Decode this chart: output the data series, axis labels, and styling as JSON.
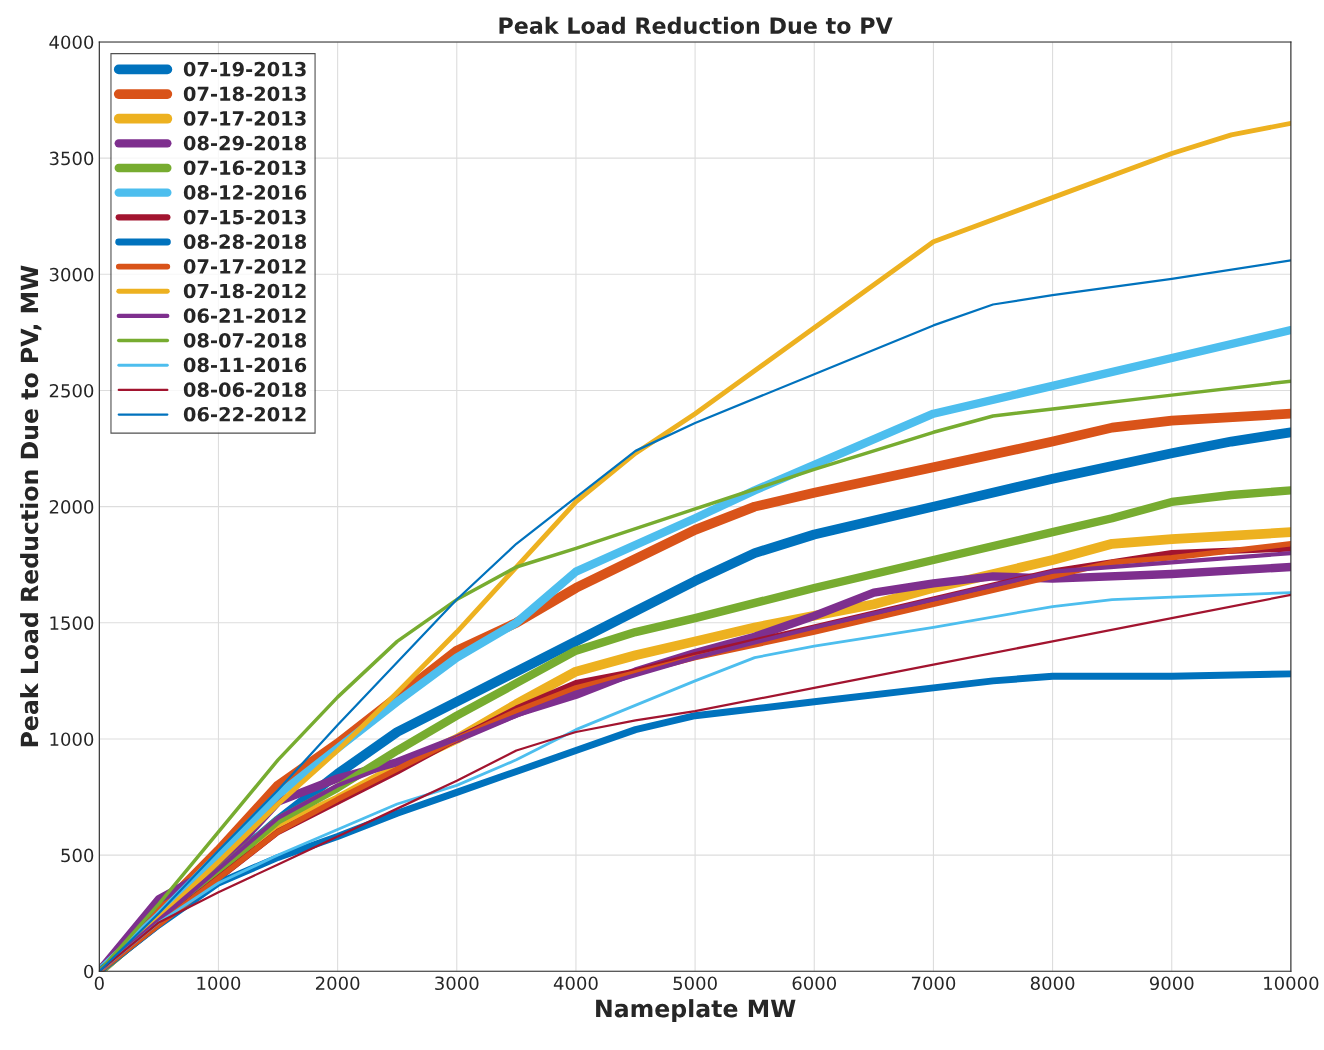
{
  "chart_data": {
    "type": "line",
    "title": "Peak Load Reduction Due to PV",
    "xlabel": "Nameplate MW",
    "ylabel": "Peak Load Reduction Due to PV, MW",
    "xlim": [
      0,
      10000
    ],
    "xticks": [
      0,
      1000,
      2000,
      3000,
      4000,
      5000,
      6000,
      7000,
      8000,
      9000,
      10000
    ],
    "ylim": [
      0,
      4000
    ],
    "yticks": [
      0,
      500,
      1000,
      1500,
      2000,
      2500,
      3000,
      3500,
      4000
    ],
    "grid": true,
    "legend": "top left",
    "marker": "none",
    "line_style": "solid",
    "series": [
      {
        "name": "07-19-2013",
        "color": "#0072bd",
        "x": [
          0,
          500,
          1000,
          1500,
          2000,
          2500,
          3000,
          3500,
          4000,
          4500,
          5000,
          5500,
          6000,
          7000,
          8000,
          9000,
          9500,
          10000
        ],
        "values": [
          0,
          220,
          430,
          650,
          850,
          1030,
          1160,
          1290,
          1420,
          1550,
          1680,
          1800,
          1880,
          2000,
          2120,
          2230,
          2280,
          2320
        ]
      },
      {
        "name": "07-18-2013",
        "color": "#d95319",
        "x": [
          0,
          500,
          1000,
          1500,
          2000,
          2500,
          3000,
          3500,
          4000,
          5000,
          5500,
          6000,
          7000,
          8000,
          8500,
          9000,
          10000
        ],
        "values": [
          0,
          260,
          520,
          800,
          980,
          1180,
          1380,
          1500,
          1650,
          1900,
          2000,
          2060,
          2170,
          2280,
          2340,
          2370,
          2400
        ]
      },
      {
        "name": "07-17-2013",
        "color": "#edb120",
        "x": [
          0,
          500,
          1000,
          1500,
          2000,
          2500,
          3000,
          3500,
          4000,
          4500,
          5000,
          5500,
          6000,
          6500,
          7000,
          8000,
          8500,
          9000,
          10000
        ],
        "values": [
          0,
          220,
          420,
          620,
          740,
          880,
          1000,
          1150,
          1290,
          1360,
          1420,
          1480,
          1530,
          1580,
          1650,
          1770,
          1840,
          1860,
          1890
        ]
      },
      {
        "name": "08-29-2018",
        "color": "#7e2f8e",
        "x": [
          0,
          500,
          1000,
          1500,
          2000,
          2500,
          3000,
          3500,
          4000,
          4500,
          5000,
          5500,
          6000,
          6500,
          7000,
          7500,
          8000,
          9000,
          10000
        ],
        "values": [
          0,
          310,
          450,
          730,
          830,
          900,
          1000,
          1110,
          1190,
          1290,
          1370,
          1440,
          1530,
          1630,
          1670,
          1700,
          1690,
          1710,
          1740
        ]
      },
      {
        "name": "07-16-2013",
        "color": "#77ac30",
        "x": [
          0,
          500,
          1000,
          1500,
          2000,
          2500,
          3000,
          3500,
          4000,
          4500,
          5000,
          6000,
          7000,
          8000,
          8500,
          9000,
          9500,
          10000
        ],
        "values": [
          0,
          210,
          430,
          650,
          790,
          950,
          1100,
          1240,
          1380,
          1460,
          1520,
          1650,
          1770,
          1890,
          1950,
          2020,
          2050,
          2070
        ]
      },
      {
        "name": "08-12-2016",
        "color": "#4dbeee",
        "x": [
          0,
          500,
          1000,
          1500,
          2000,
          2500,
          3000,
          3500,
          4000,
          5000,
          5500,
          6000,
          7000,
          8000,
          9000,
          10000
        ],
        "values": [
          0,
          240,
          500,
          760,
          960,
          1160,
          1350,
          1500,
          1720,
          1950,
          2070,
          2180,
          2400,
          2520,
          2640,
          2760
        ]
      },
      {
        "name": "07-15-2013",
        "color": "#a2142f",
        "x": [
          0,
          500,
          1000,
          1500,
          2000,
          2500,
          3000,
          3500,
          4000,
          4500,
          5000,
          6000,
          7000,
          8000,
          8500,
          9000,
          10000
        ],
        "values": [
          0,
          200,
          400,
          600,
          730,
          860,
          1000,
          1130,
          1240,
          1290,
          1360,
          1480,
          1600,
          1720,
          1760,
          1800,
          1820
        ]
      },
      {
        "name": "08-28-2018",
        "color": "#0072bd",
        "x": [
          0,
          500,
          1000,
          1500,
          2000,
          2500,
          3000,
          3500,
          4000,
          4500,
          5000,
          5500,
          6000,
          7000,
          7500,
          8000,
          9000,
          10000
        ],
        "values": [
          0,
          200,
          380,
          490,
          580,
          680,
          770,
          860,
          950,
          1040,
          1100,
          1130,
          1160,
          1220,
          1250,
          1270,
          1270,
          1280
        ]
      },
      {
        "name": "07-17-2012",
        "color": "#d95319",
        "x": [
          0,
          500,
          1000,
          1500,
          2000,
          2500,
          3000,
          3500,
          4000,
          5000,
          6000,
          7000,
          8000,
          8500,
          9000,
          10000
        ],
        "values": [
          0,
          200,
          400,
          600,
          740,
          870,
          1000,
          1120,
          1220,
          1350,
          1460,
          1580,
          1700,
          1760,
          1780,
          1840
        ]
      },
      {
        "name": "07-18-2012",
        "color": "#edb120",
        "x": [
          0,
          500,
          1000,
          1500,
          2000,
          2500,
          3000,
          3500,
          4000,
          4500,
          5000,
          6000,
          7000,
          8000,
          9000,
          9500,
          10000
        ],
        "values": [
          0,
          230,
          470,
          720,
          950,
          1200,
          1460,
          1740,
          2020,
          2230,
          2400,
          2770,
          3140,
          3330,
          3520,
          3600,
          3650
        ]
      },
      {
        "name": "06-21-2012",
        "color": "#7e2f8e",
        "x": [
          0,
          500,
          1000,
          1500,
          2000,
          2500,
          3000,
          3500,
          4000,
          5000,
          6000,
          7000,
          8000,
          9000,
          10000
        ],
        "values": [
          0,
          220,
          440,
          660,
          800,
          900,
          1000,
          1100,
          1200,
          1350,
          1480,
          1600,
          1720,
          1760,
          1800
        ]
      },
      {
        "name": "08-07-2018",
        "color": "#77ac30",
        "x": [
          0,
          500,
          1000,
          1500,
          2000,
          2500,
          3000,
          3500,
          4000,
          5000,
          6000,
          7000,
          7500,
          8000,
          9000,
          10000
        ],
        "values": [
          0,
          290,
          600,
          910,
          1180,
          1420,
          1600,
          1740,
          1820,
          1990,
          2160,
          2320,
          2390,
          2420,
          2480,
          2540
        ]
      },
      {
        "name": "08-11-2016",
        "color": "#4dbeee",
        "x": [
          0,
          500,
          1000,
          1500,
          2000,
          2500,
          3000,
          3500,
          4000,
          5000,
          5500,
          6000,
          7000,
          8000,
          8500,
          9000,
          10000
        ],
        "values": [
          0,
          210,
          380,
          500,
          610,
          720,
          800,
          910,
          1040,
          1250,
          1350,
          1400,
          1480,
          1570,
          1600,
          1610,
          1630
        ]
      },
      {
        "name": "08-06-2018",
        "color": "#a2142f",
        "x": [
          0,
          500,
          1000,
          1500,
          2000,
          2500,
          3000,
          3500,
          4000,
          4500,
          5000,
          6000,
          7000,
          8000,
          9000,
          10000
        ],
        "values": [
          0,
          210,
          340,
          460,
          580,
          700,
          820,
          950,
          1030,
          1080,
          1120,
          1220,
          1320,
          1420,
          1520,
          1620
        ]
      },
      {
        "name": "06-22-2012",
        "color": "#0072bd",
        "x": [
          0,
          500,
          1000,
          1500,
          2000,
          2500,
          3000,
          3500,
          4000,
          4500,
          5000,
          6000,
          7000,
          7500,
          8000,
          9000,
          10000
        ],
        "values": [
          0,
          250,
          520,
          780,
          1060,
          1330,
          1600,
          1840,
          2040,
          2240,
          2360,
          2570,
          2780,
          2870,
          2910,
          2980,
          3060
        ]
      }
    ]
  }
}
